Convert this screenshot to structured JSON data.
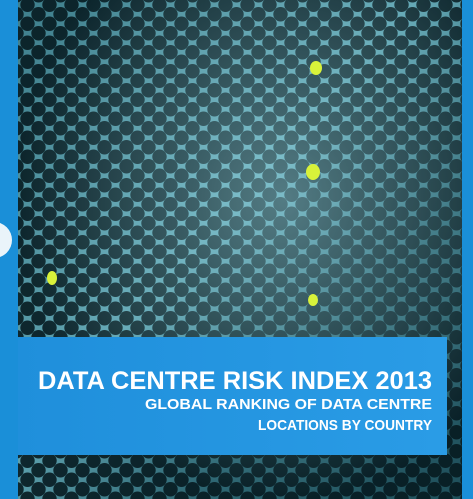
{
  "cover": {
    "title": "DATA CENTRE RISK INDEX 2013",
    "subtitle_lines": [
      "GLOBAL RANKING OF DATA CENTRE",
      "LOCATIONS BY COUNTRY"
    ]
  }
}
